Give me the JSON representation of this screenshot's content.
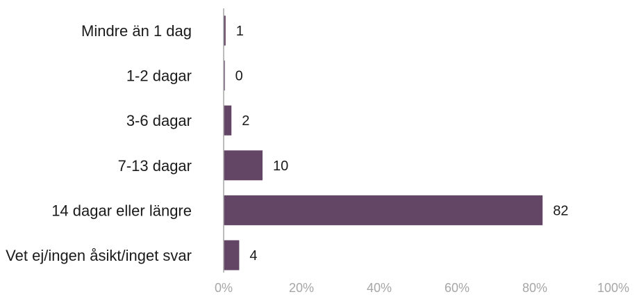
{
  "chart_data": {
    "type": "bar",
    "orientation": "horizontal",
    "title": "",
    "xlabel": "",
    "ylabel": "",
    "categories": [
      "Mindre än 1 dag",
      "1-2 dagar",
      "3-6 dagar",
      "7-13 dagar",
      "14 dagar eller längre",
      "Vet ej/ingen åsikt/inget svar"
    ],
    "values": [
      0.5,
      0.3,
      2,
      10,
      82,
      4
    ],
    "data_labels": [
      "1",
      "0",
      "2",
      "10",
      "82",
      "4"
    ],
    "xlim": [
      0,
      100
    ],
    "xticks": [
      0,
      20,
      40,
      60,
      80,
      100
    ],
    "xtick_labels": [
      "0%",
      "20%",
      "40%",
      "60%",
      "80%",
      "100%"
    ],
    "grid": false,
    "legend": "none",
    "colors": {
      "bar": "#634565",
      "category_text": "#1a1a1a",
      "value_text": "#1a1a1a",
      "tick_text": "#a6a6a6",
      "axis_line": "#a6a6a6"
    }
  }
}
